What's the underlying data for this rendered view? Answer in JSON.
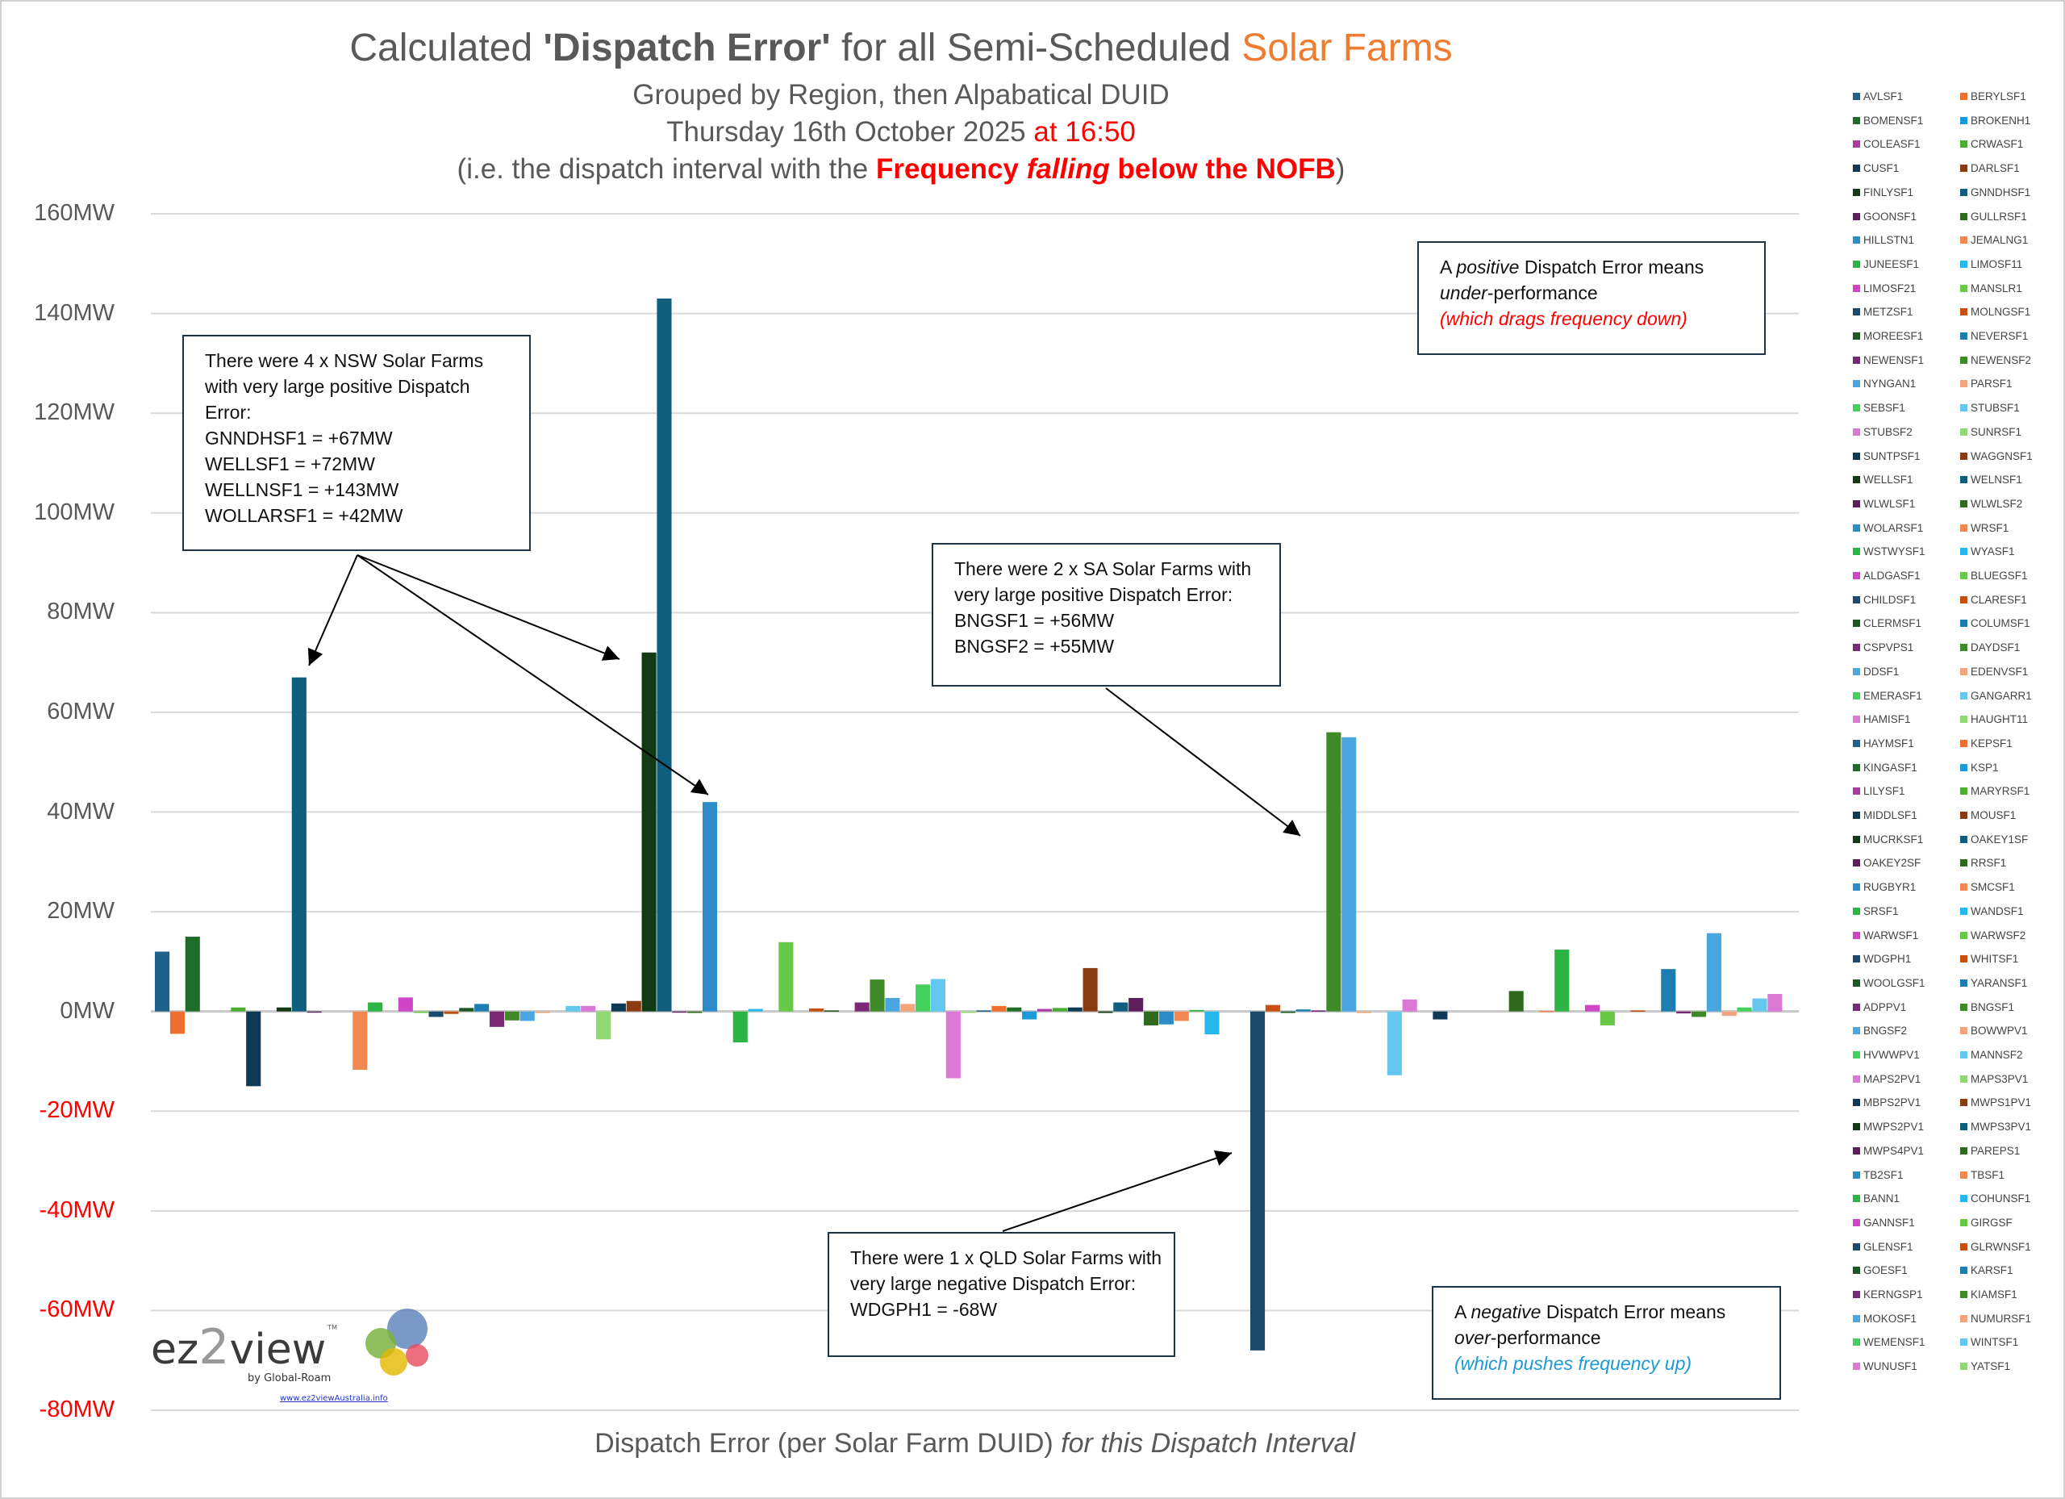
{
  "title": {
    "pre": "Calculated ",
    "bold": "'Dispatch Error'",
    "mid": " for all Semi-Scheduled ",
    "accent": "Solar Farms"
  },
  "subtitle1": "Grouped by Region, then Alpabatical DUID",
  "subtitle2": {
    "date": "Thursday 16th October 2025",
    "time": " at 16:50"
  },
  "subtitle3": {
    "pre": "(i.e. the dispatch interval with the ",
    "b1": "Frequency ",
    "bi": "falling",
    "b2": " below the NOFB",
    "post": ")"
  },
  "annotations": {
    "nsw": [
      "There were 4 x NSW Solar Farms",
      "with very large positive Dispatch",
      "Error:",
      "GNNDHSF1 = +67MW",
      "WELLSF1 = +72MW",
      "WELLNSF1 = +143MW",
      "WOLLARSF1 = +42MW"
    ],
    "sa": [
      "There were 2 x SA Solar Farms with",
      "very large positive Dispatch Error:",
      "BNGSF1 = +56MW",
      "BNGSF2 = +55MW"
    ],
    "qld": [
      "There were 1 x QLD Solar Farms with",
      "very large negative Dispatch Error:",
      "WDGPH1 = -68W"
    ],
    "positive": {
      "a": "A ",
      "b": "positive",
      "c": " Dispatch Error means",
      "d": "under",
      "e": "-performance",
      "f": "(which drags frequency down)"
    },
    "negative": {
      "a": "A ",
      "b": "negative",
      "c": " Dispatch Error means",
      "d": "over",
      "e": "-performance",
      "f": "(which pushes frequency up)"
    }
  },
  "logo": {
    "ez": "ez",
    "two": "2",
    "view": "view",
    "tm": "TM",
    "by": "by Global-Roam",
    "url": "www.ez2viewAustralia.info"
  },
  "colors": {
    "title_accent": "#ee7d31",
    "highlight": "#ff0000",
    "negative_note": "#1a9bd7",
    "grid": "#d9d9d9",
    "palette_groups": {
      "A": [
        "#1f618d",
        "#ed7030",
        "#1e6e2a",
        "#1a9bd7",
        "#a93aa6",
        "#4cad33"
      ],
      "B": [
        "#0f3a55",
        "#8a3b12",
        "#123b15",
        "#0f5e7e",
        "#5e1e5c",
        "#2f6a1f"
      ],
      "C": [
        "#2d8bc8",
        "#f08850",
        "#2cb544",
        "#24b8ef",
        "#cf45c8",
        "#68c948"
      ],
      "D": [
        "#1c4a6c",
        "#c6500f",
        "#1a5a22",
        "#1d7cb0",
        "#7b2877",
        "#3f8a26"
      ],
      "E": [
        "#4aa6e0",
        "#f4a47a",
        "#44d05c",
        "#63c7f0",
        "#dc78d6",
        "#8fd873"
      ]
    },
    "group_sequence": [
      "A",
      "B",
      "C",
      "D",
      "E",
      "B",
      "C",
      "D",
      "E"
    ]
  },
  "chart_data": {
    "type": "bar",
    "title": "Calculated 'Dispatch Error' for all Semi-Scheduled Solar Farms",
    "xlabel": "Dispatch Error (per Solar Farm DUID) for this Dispatch Interval",
    "xlabel_plain": "Dispatch Error (per Solar Farm DUID) ",
    "xlabel_italic": "for this Dispatch Interval",
    "ylabel": "",
    "unit": "MW",
    "ylim": [
      -80,
      160
    ],
    "yticks": [
      160,
      140,
      120,
      100,
      80,
      60,
      40,
      20,
      0,
      -20,
      -40,
      -60,
      -80
    ],
    "ytick_labels": [
      "160MW",
      "140MW",
      "120MW",
      "100MW",
      "80MW",
      "60MW",
      "40MW",
      "20MW",
      "0MW",
      "-20MW",
      "-40MW",
      "-60MW",
      "-80MW"
    ],
    "grid": true,
    "legend": "right",
    "series_names": [
      "AVLSF1",
      "BERYLSF1",
      "BOMENSF1",
      "BROKENH1",
      "COLEASF1",
      "CRWASF1",
      "CUSF1",
      "DARLSF1",
      "FINLYSF1",
      "GNNDHSF1",
      "GOONSF1",
      "GULLRSF1",
      "HILLSTN1",
      "JEMALNG1",
      "JUNEESF1",
      "LIMOSF11",
      "LIMOSF21",
      "MANSLR1",
      "METZSF1",
      "MOLNGSF1",
      "MOREESF1",
      "NEVERSF1",
      "NEWENSF1",
      "NEWENSF2",
      "NYNGAN1",
      "PARSF1",
      "SEBSF1",
      "STUBSF1",
      "STUBSF2",
      "SUNRSF1",
      "SUNTPSF1",
      "WAGGNSF1",
      "WELLSF1",
      "WELNSF1",
      "WLWLSF1",
      "WLWLSF2",
      "WOLARSF1",
      "WRSF1",
      "WSTWYSF1",
      "WYASF1",
      "ALDGASF1",
      "BLUEGSF1",
      "CHILDSF1",
      "CLARESF1",
      "CLERMSF1",
      "COLUMSF1",
      "CSPVPS1",
      "DAYDSF1",
      "DDSF1",
      "EDENVSF1",
      "EMERASF1",
      "GANGARR1",
      "HAMISF1",
      "HAUGHT11",
      "HAYMSF1",
      "KEPSF1",
      "KINGASF1",
      "KSP1",
      "LILYSF1",
      "MARYRSF1",
      "MIDDLSF1",
      "MOUSF1",
      "MUCRKSF1",
      "OAKEY1SF",
      "OAKEY2SF",
      "RRSF1",
      "RUGBYR1",
      "SMCSF1",
      "SRSF1",
      "WANDSF1",
      "WARWSF1",
      "WARWSF2",
      "WDGPH1",
      "WHITSF1",
      "WOOLGSF1",
      "YARANSF1",
      "ADPPV1",
      "BNGSF1",
      "BNGSF2",
      "BOWWPV1",
      "HVWWPV1",
      "MANNSF2",
      "MAPS2PV1",
      "MAPS3PV1",
      "MBPS2PV1",
      "MWPS1PV1",
      "MWPS2PV1",
      "MWPS3PV1",
      "MWPS4PV1",
      "PAREPS1",
      "TB2SF1",
      "TBSF1",
      "BANN1",
      "COHUNSF1",
      "GANNSF1",
      "GIRGSF",
      "GLENSF1",
      "GLRWNSF1",
      "GOESF1",
      "KARSF1",
      "KERNGSP1",
      "KIAMSF1",
      "MOKOSF1",
      "NUMURSF1",
      "WEMENSF1",
      "WINTSF1",
      "WUNUSF1",
      "YATSF1"
    ],
    "values": [
      12,
      -4.5,
      15,
      0,
      0,
      0.8,
      -15,
      0,
      0.8,
      67,
      -0.1,
      0,
      0,
      -11.7,
      1.8,
      0,
      2.8,
      -0.3,
      -1.1,
      -0.5,
      0.7,
      1.5,
      -3.1,
      -1.8,
      -1.9,
      -0.3,
      0,
      1.1,
      1.1,
      -5.6,
      1.6,
      2.1,
      72,
      143,
      -0.2,
      -0.3,
      42,
      0,
      -6.2,
      0.5,
      0,
      13.9,
      0,
      0.6,
      0.2,
      0,
      1.8,
      6.4,
      2.7,
      1.5,
      5.4,
      6.5,
      -13.4,
      -0.3,
      0.2,
      1.1,
      0.8,
      -1.6,
      0.5,
      0.7,
      0.8,
      8.7,
      -0.3,
      1.8,
      2.7,
      -2.8,
      -2.6,
      -1.9,
      0.3,
      -4.6,
      0,
      0,
      -68,
      1.3,
      -0.3,
      0.4,
      0.2,
      56,
      55,
      -0.3,
      0,
      -12.8,
      2.4,
      0,
      -1.6,
      0,
      0,
      0,
      0,
      4.1,
      0,
      0.1,
      12.4,
      0,
      1.3,
      -2.8,
      0,
      0.2,
      0,
      8.5,
      -0.4,
      -1.1,
      15.7,
      -0.9,
      0.8,
      2.6,
      3.5,
      0
    ]
  }
}
